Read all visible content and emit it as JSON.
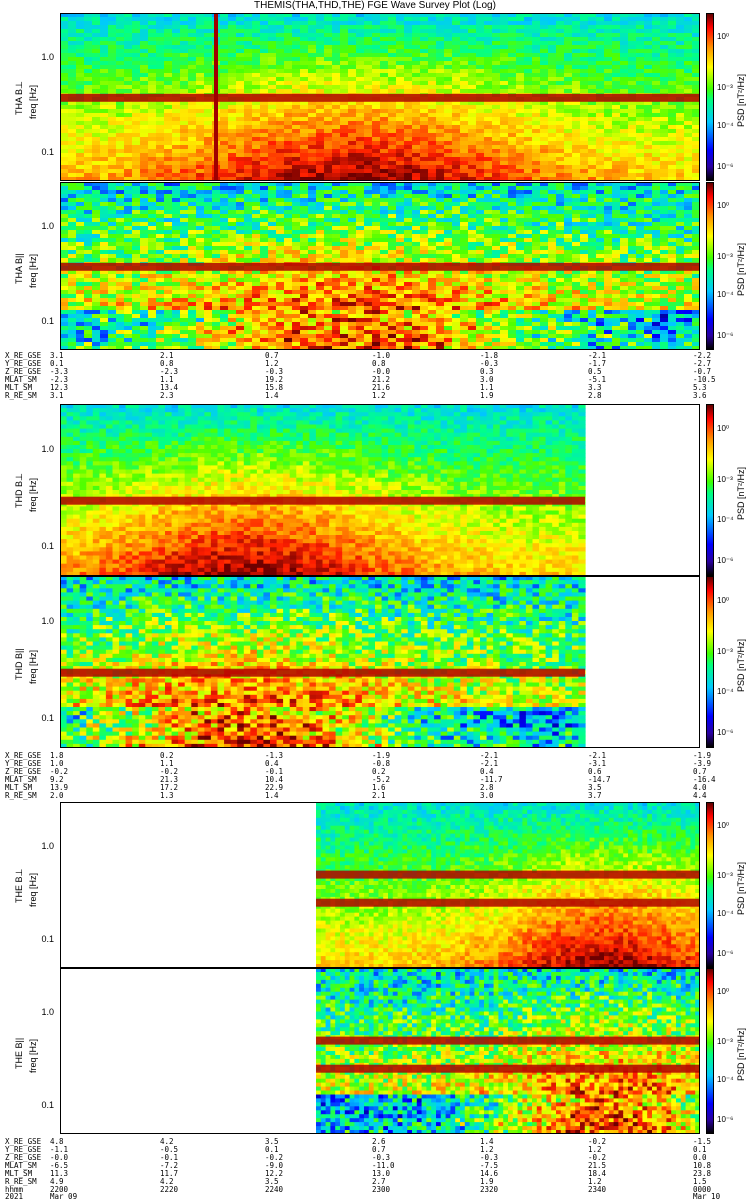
{
  "title": "THEMIS(THA,THD,THE) FGE Wave Survey Plot (Log)",
  "colorbar": {
    "unit": "PSD [nT²/Hz]",
    "ticks": [
      "10⁰",
      "10⁻³",
      "10⁻⁴",
      "10⁻⁶"
    ]
  },
  "y_ticks": [
    "1.0",
    "0.1"
  ],
  "chart_data": [
    {
      "type": "heatmap",
      "probe": "THA",
      "component": "B⊥",
      "ylabel_top": "THA B⊥",
      "ylabel_bottom": "freq [Hz]",
      "yscale": "log",
      "ylim": [
        0.05,
        3.0
      ],
      "data_start_fraction": 0.0,
      "data_end_fraction": 1.0,
      "line_freqs": [
        0.38
      ],
      "vertical_line": 0.24
    },
    {
      "type": "heatmap",
      "probe": "THA",
      "component": "B||",
      "ylabel_top": "THA B||",
      "ylabel_bottom": "freq [Hz]",
      "yscale": "log",
      "ylim": [
        0.05,
        3.0
      ],
      "data_start_fraction": 0.0,
      "data_end_fraction": 1.0,
      "line_freqs": [
        0.38
      ]
    },
    {
      "type": "heatmap",
      "probe": "THD",
      "component": "B⊥",
      "ylabel_top": "THD B⊥",
      "ylabel_bottom": "freq [Hz]",
      "yscale": "log",
      "ylim": [
        0.05,
        3.0
      ],
      "data_start_fraction": 0.0,
      "data_end_fraction": 0.82,
      "line_freqs": [
        0.3
      ]
    },
    {
      "type": "heatmap",
      "probe": "THD",
      "component": "B||",
      "ylabel_top": "THD B||",
      "ylabel_bottom": "freq [Hz]",
      "yscale": "log",
      "ylim": [
        0.05,
        3.0
      ],
      "data_start_fraction": 0.0,
      "data_end_fraction": 0.82,
      "line_freqs": [
        0.3
      ]
    },
    {
      "type": "heatmap",
      "probe": "THE",
      "component": "B⊥",
      "ylabel_top": "THE B⊥",
      "ylabel_bottom": "freq [Hz]",
      "yscale": "log",
      "ylim": [
        0.05,
        3.0
      ],
      "data_start_fraction": 0.4,
      "data_end_fraction": 1.0,
      "line_freqs": [
        0.25,
        0.5
      ]
    },
    {
      "type": "heatmap",
      "probe": "THE",
      "component": "B||",
      "ylabel_top": "THE B||",
      "ylabel_bottom": "freq [Hz]",
      "yscale": "log",
      "ylim": [
        0.05,
        3.0
      ],
      "data_start_fraction": 0.4,
      "data_end_fraction": 1.0,
      "line_freqs": [
        0.25,
        0.5
      ]
    }
  ],
  "ephemeris": {
    "tha": [
      {
        "label": "X_RE_GSE",
        "values": [
          "3.1",
          "2.1",
          "0.7",
          "-1.0",
          "-1.8",
          "-2.1",
          "-2.2"
        ]
      },
      {
        "label": "Y_RE_GSE",
        "values": [
          "0.1",
          "0.8",
          "1.2",
          "0.8",
          "-0.3",
          "-1.7",
          "-2.7"
        ]
      },
      {
        "label": "Z_RE_GSE",
        "values": [
          "-3.3",
          "-2.3",
          "-0.3",
          "-0.0",
          "0.3",
          "0.5",
          "-0.7"
        ]
      },
      {
        "label": "MLAT_SM",
        "values": [
          "-2.3",
          "1.1",
          "19.2",
          "21.2",
          "3.0",
          "-5.1",
          "-10.5"
        ]
      },
      {
        "label": "MLT_SM",
        "values": [
          "12.3",
          "13.4",
          "15.8",
          "21.6",
          "1.1",
          "3.3",
          "5.3"
        ]
      },
      {
        "label": "R_RE_SM",
        "values": [
          "3.1",
          "2.3",
          "1.4",
          "1.2",
          "1.9",
          "2.8",
          "3.6"
        ]
      }
    ],
    "thd": [
      {
        "label": "X_RE_GSE",
        "values": [
          "1.8",
          "0.2",
          "-1.3",
          "-1.9",
          "-2.1",
          "-2.1",
          "-1.9"
        ]
      },
      {
        "label": "Y_RE_GSE",
        "values": [
          "1.0",
          "1.1",
          "0.4",
          "-0.8",
          "-2.1",
          "-3.1",
          "-3.9"
        ]
      },
      {
        "label": "Z_RE_GSE",
        "values": [
          "-0.2",
          "-0.2",
          "-0.1",
          "0.2",
          "0.4",
          "0.6",
          "0.7"
        ]
      },
      {
        "label": "MLAT_SM",
        "values": [
          "9.2",
          "21.3",
          "10.4",
          "-5.2",
          "-11.7",
          "-14.7",
          "-16.4"
        ]
      },
      {
        "label": "MLT_SM",
        "values": [
          "13.9",
          "17.2",
          "22.9",
          "1.6",
          "2.8",
          "3.5",
          "4.0"
        ]
      },
      {
        "label": "R_RE_SM",
        "values": [
          "2.0",
          "1.3",
          "1.4",
          "2.1",
          "3.0",
          "3.7",
          "4.4"
        ]
      }
    ],
    "the": [
      {
        "label": "X_RE_GSE",
        "values": [
          "4.8",
          "4.2",
          "3.5",
          "2.6",
          "1.4",
          "-0.2",
          "-1.5"
        ]
      },
      {
        "label": "Y_RE_GSE",
        "values": [
          "-1.1",
          "-0.5",
          "0.1",
          "0.7",
          "1.2",
          "1.2",
          "0.1"
        ]
      },
      {
        "label": "Z_RE_GSE",
        "values": [
          "-0.0",
          "-0.1",
          "-0.2",
          "-0.3",
          "-0.3",
          "-0.2",
          "0.0"
        ]
      },
      {
        "label": "MLAT_SM",
        "values": [
          "-6.5",
          "-7.2",
          "-9.0",
          "-11.0",
          "-7.5",
          "21.5",
          "10.8"
        ]
      },
      {
        "label": "MLT_SM",
        "values": [
          "11.3",
          "11.7",
          "12.2",
          "13.0",
          "14.6",
          "18.4",
          "23.8"
        ]
      },
      {
        "label": "R_RE_SM",
        "values": [
          "4.9",
          "4.2",
          "3.5",
          "2.7",
          "1.9",
          "1.2",
          "1.5"
        ]
      }
    ],
    "time_row": {
      "label": "hhmm",
      "values": [
        "2200",
        "2220",
        "2240",
        "2300",
        "2320",
        "2340",
        "0000"
      ]
    },
    "date_row": {
      "label": "2021",
      "start": "Mar 09",
      "end": "Mar 10"
    }
  },
  "colors": {
    "hot": "#800000",
    "bg": "#ffffff"
  }
}
